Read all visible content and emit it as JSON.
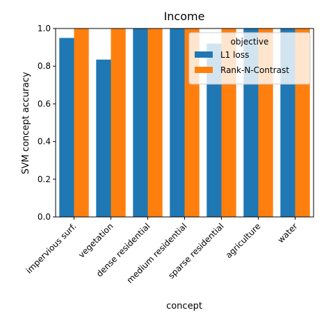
{
  "chart_data": {
    "type": "bar",
    "title": "Income",
    "xlabel": "concept",
    "ylabel": "SVM concept accuracy",
    "categories": [
      "impervious surf.",
      "vegetation",
      "dense residential",
      "medium residential",
      "sparse residential",
      "agriculture",
      "water"
    ],
    "series": [
      {
        "name": "L1 loss",
        "color": "#1f77b4",
        "values": [
          0.95,
          0.835,
          1.0,
          1.0,
          0.92,
          1.0,
          1.0
        ]
      },
      {
        "name": "Rank-N-Contrast",
        "color": "#ff7f0e",
        "values": [
          1.0,
          1.0,
          1.0,
          1.0,
          1.0,
          1.0,
          1.0
        ]
      }
    ],
    "ylim": [
      0,
      1.0
    ],
    "yticks": [
      "0.0",
      "0.2",
      "0.4",
      "0.6",
      "0.8",
      "1.0"
    ],
    "legend": {
      "title": "objective",
      "placement": "top-right"
    },
    "grid": false
  }
}
